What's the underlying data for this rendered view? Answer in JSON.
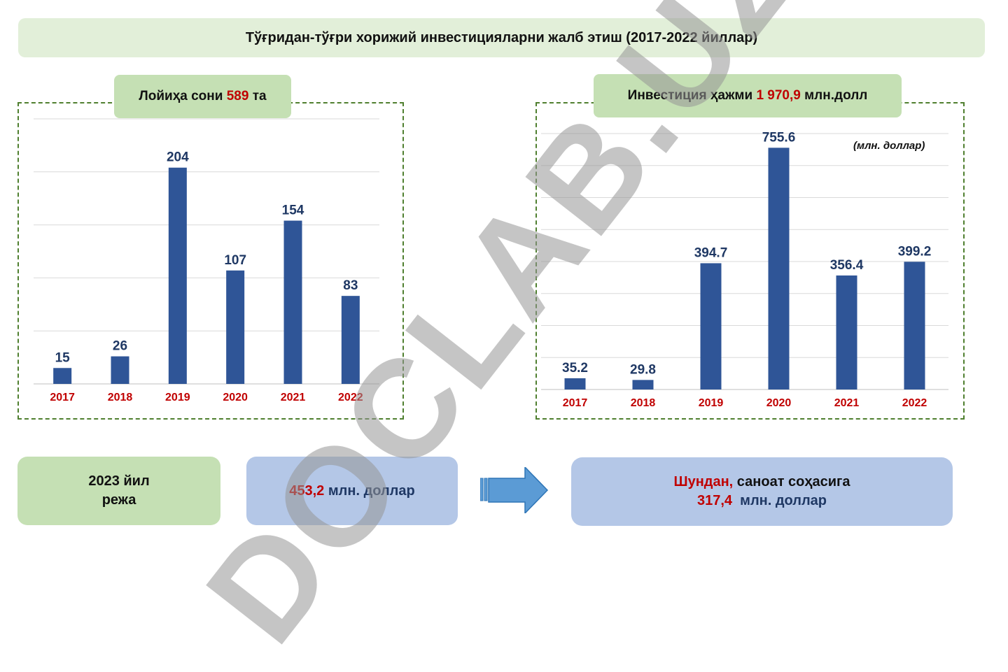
{
  "header": {
    "title": "Тўғридан-тўғри хорижий инвестицияларни жалб этиш (2017-2022 йиллар)"
  },
  "left_panel": {
    "label_prefix": "Лойиҳа сони ",
    "label_value": "589",
    "label_suffix": " та"
  },
  "right_panel": {
    "label_prefix": "Инвестиция ҳажми ",
    "label_value": "1 970,9",
    "label_suffix": " млн.долл",
    "units": "(млн. доллар)"
  },
  "bottom": {
    "plan_line1": "2023 йил",
    "plan_line2": "режа",
    "plan_amount_value": "453,2",
    "plan_amount_unit": " млн. доллар",
    "industry_prefix": "Шундан,",
    "industry_suffix": " саноат соҳасига",
    "industry_value": "317,4",
    "industry_unit": "  млн. доллар"
  },
  "watermark": "DOCLAB.UZ",
  "colors": {
    "bar": "#2f5597",
    "year_label": "#c00000",
    "value_label": "#1f3864",
    "frame": "#4f7f2f"
  },
  "chart_data": [
    {
      "type": "bar",
      "title": "Лойиҳа сони 589 та",
      "categories": [
        "2017",
        "2018",
        "2019",
        "2020",
        "2021",
        "2022"
      ],
      "values": [
        15,
        26,
        204,
        107,
        154,
        83
      ],
      "value_labels": [
        "15",
        "26",
        "204",
        "107",
        "154",
        "83"
      ],
      "ylim": [
        0,
        250
      ],
      "grid": true,
      "xlabel": "",
      "ylabel": ""
    },
    {
      "type": "bar",
      "title": "Инвестиция ҳажми 1 970,9 млн.долл",
      "categories": [
        "2017",
        "2018",
        "2019",
        "2020",
        "2021",
        "2022"
      ],
      "values": [
        35.2,
        29.8,
        394.7,
        755.6,
        356.4,
        399.2
      ],
      "value_labels": [
        "35.2",
        "29.8",
        "394.7",
        "755.6",
        "356.4",
        "399.2"
      ],
      "ylim": [
        0,
        800
      ],
      "grid": true,
      "xlabel": "",
      "ylabel": "(млн. доллар)"
    }
  ]
}
